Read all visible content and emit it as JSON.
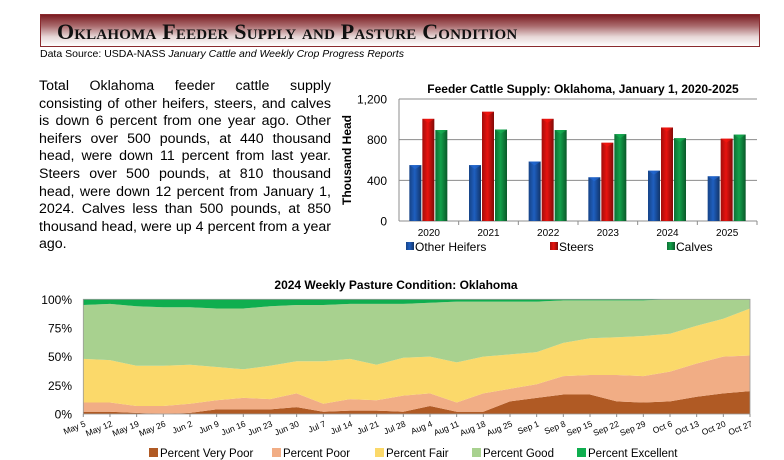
{
  "header": {
    "title": "Oklahoma Feeder Supply and Pasture Condition",
    "source_prefix": "Data Source: USDA-NASS ",
    "source_italic": "January Cattle and Weekly Crop Progress Reports"
  },
  "summary_text": "Total Oklahoma feeder cattle supply consisting of other heifers, steers, and calves is down 6 percent from one year ago. Other heifers over 500 pounds, at 440 thousand head, were down 11 percent from last year. Steers over 500 pounds, at 810 thousand head, were down 12 percent from January 1, 2024. Calves less than 500 pounds, at 850 thousand head, were up 4 percent from a year ago.",
  "chart_data": [
    {
      "type": "bar",
      "title": "Feeder Cattle Supply: Oklahoma, January 1, 2020-2025",
      "xlabel": "",
      "ylabel": "Thousand Head",
      "ylim": [
        0,
        1200
      ],
      "yticks": [
        0,
        400,
        800,
        1200
      ],
      "ytick_labels": [
        "0",
        "400",
        "800",
        "1,200"
      ],
      "grid": true,
      "legend_position": "bottom",
      "categories": [
        "2020",
        "2021",
        "2022",
        "2023",
        "2024",
        "2025"
      ],
      "series": [
        {
          "name": "Other Heifers",
          "color": "#1f5fbf",
          "values": [
            550,
            550,
            585,
            430,
            495,
            440
          ]
        },
        {
          "name": "Steers",
          "color": "#e8130f",
          "values": [
            1005,
            1075,
            1005,
            770,
            920,
            810
          ]
        },
        {
          "name": "Calves",
          "color": "#12a04a",
          "values": [
            895,
            900,
            895,
            855,
            815,
            850
          ]
        }
      ]
    },
    {
      "type": "area",
      "stacked": true,
      "title": "2024 Weekly Pasture Condition: Oklahoma",
      "xlabel": "",
      "ylabel": "",
      "ylim": [
        0,
        100
      ],
      "yticks": [
        0,
        25,
        50,
        75,
        100
      ],
      "ytick_labels": [
        "0%",
        "25%",
        "50%",
        "75%",
        "100%"
      ],
      "grid": false,
      "legend_position": "bottom",
      "x": [
        "May 5",
        "May 12",
        "May 19",
        "May 26",
        "Jun 2",
        "Jun 9",
        "Jun 16",
        "Jun 23",
        "Jun 30",
        "Jul 7",
        "Jul 14",
        "Jul 21",
        "Jul 28",
        "Aug 4",
        "Aug 11",
        "Aug 18",
        "Aug 25",
        "Sep 1",
        "Sep 8",
        "Sep 15",
        "Sep 22",
        "Sep 29",
        "Oct 6",
        "Oct 13",
        "Oct 20",
        "Oct 27"
      ],
      "series": [
        {
          "name": "Percent Very Poor",
          "color": "#b05a24",
          "values": [
            2,
            2,
            1,
            0,
            1,
            4,
            4,
            4,
            6,
            2,
            3,
            3,
            2,
            7,
            2,
            2,
            11,
            14,
            17,
            17,
            11,
            10,
            11,
            15,
            18,
            20
          ]
        },
        {
          "name": "Percent Poor",
          "color": "#f1ad85",
          "values": [
            8,
            8,
            6,
            7,
            8,
            8,
            10,
            9,
            12,
            7,
            10,
            9,
            14,
            11,
            8,
            16,
            11,
            12,
            16,
            17,
            23,
            23,
            26,
            29,
            32,
            31
          ]
        },
        {
          "name": "Percent Fair",
          "color": "#fbd96a",
          "values": [
            38,
            37,
            35,
            35,
            34,
            29,
            25,
            29,
            28,
            37,
            35,
            31,
            33,
            32,
            35,
            32,
            30,
            28,
            29,
            32,
            33,
            35,
            33,
            33,
            33,
            41
          ]
        },
        {
          "name": "Percent Good",
          "color": "#a8d18f",
          "values": [
            47,
            49,
            52,
            51,
            50,
            51,
            53,
            52,
            49,
            49,
            48,
            53,
            47,
            47,
            53,
            48,
            46,
            44,
            37,
            33,
            32,
            31,
            30,
            23,
            17,
            8
          ]
        },
        {
          "name": "Percent Excellent",
          "color": "#0fae4f",
          "values": [
            5,
            4,
            6,
            7,
            7,
            8,
            8,
            6,
            5,
            5,
            4,
            4,
            4,
            3,
            2,
            2,
            2,
            2,
            1,
            1,
            1,
            1,
            0,
            0,
            0,
            0
          ]
        }
      ]
    }
  ]
}
